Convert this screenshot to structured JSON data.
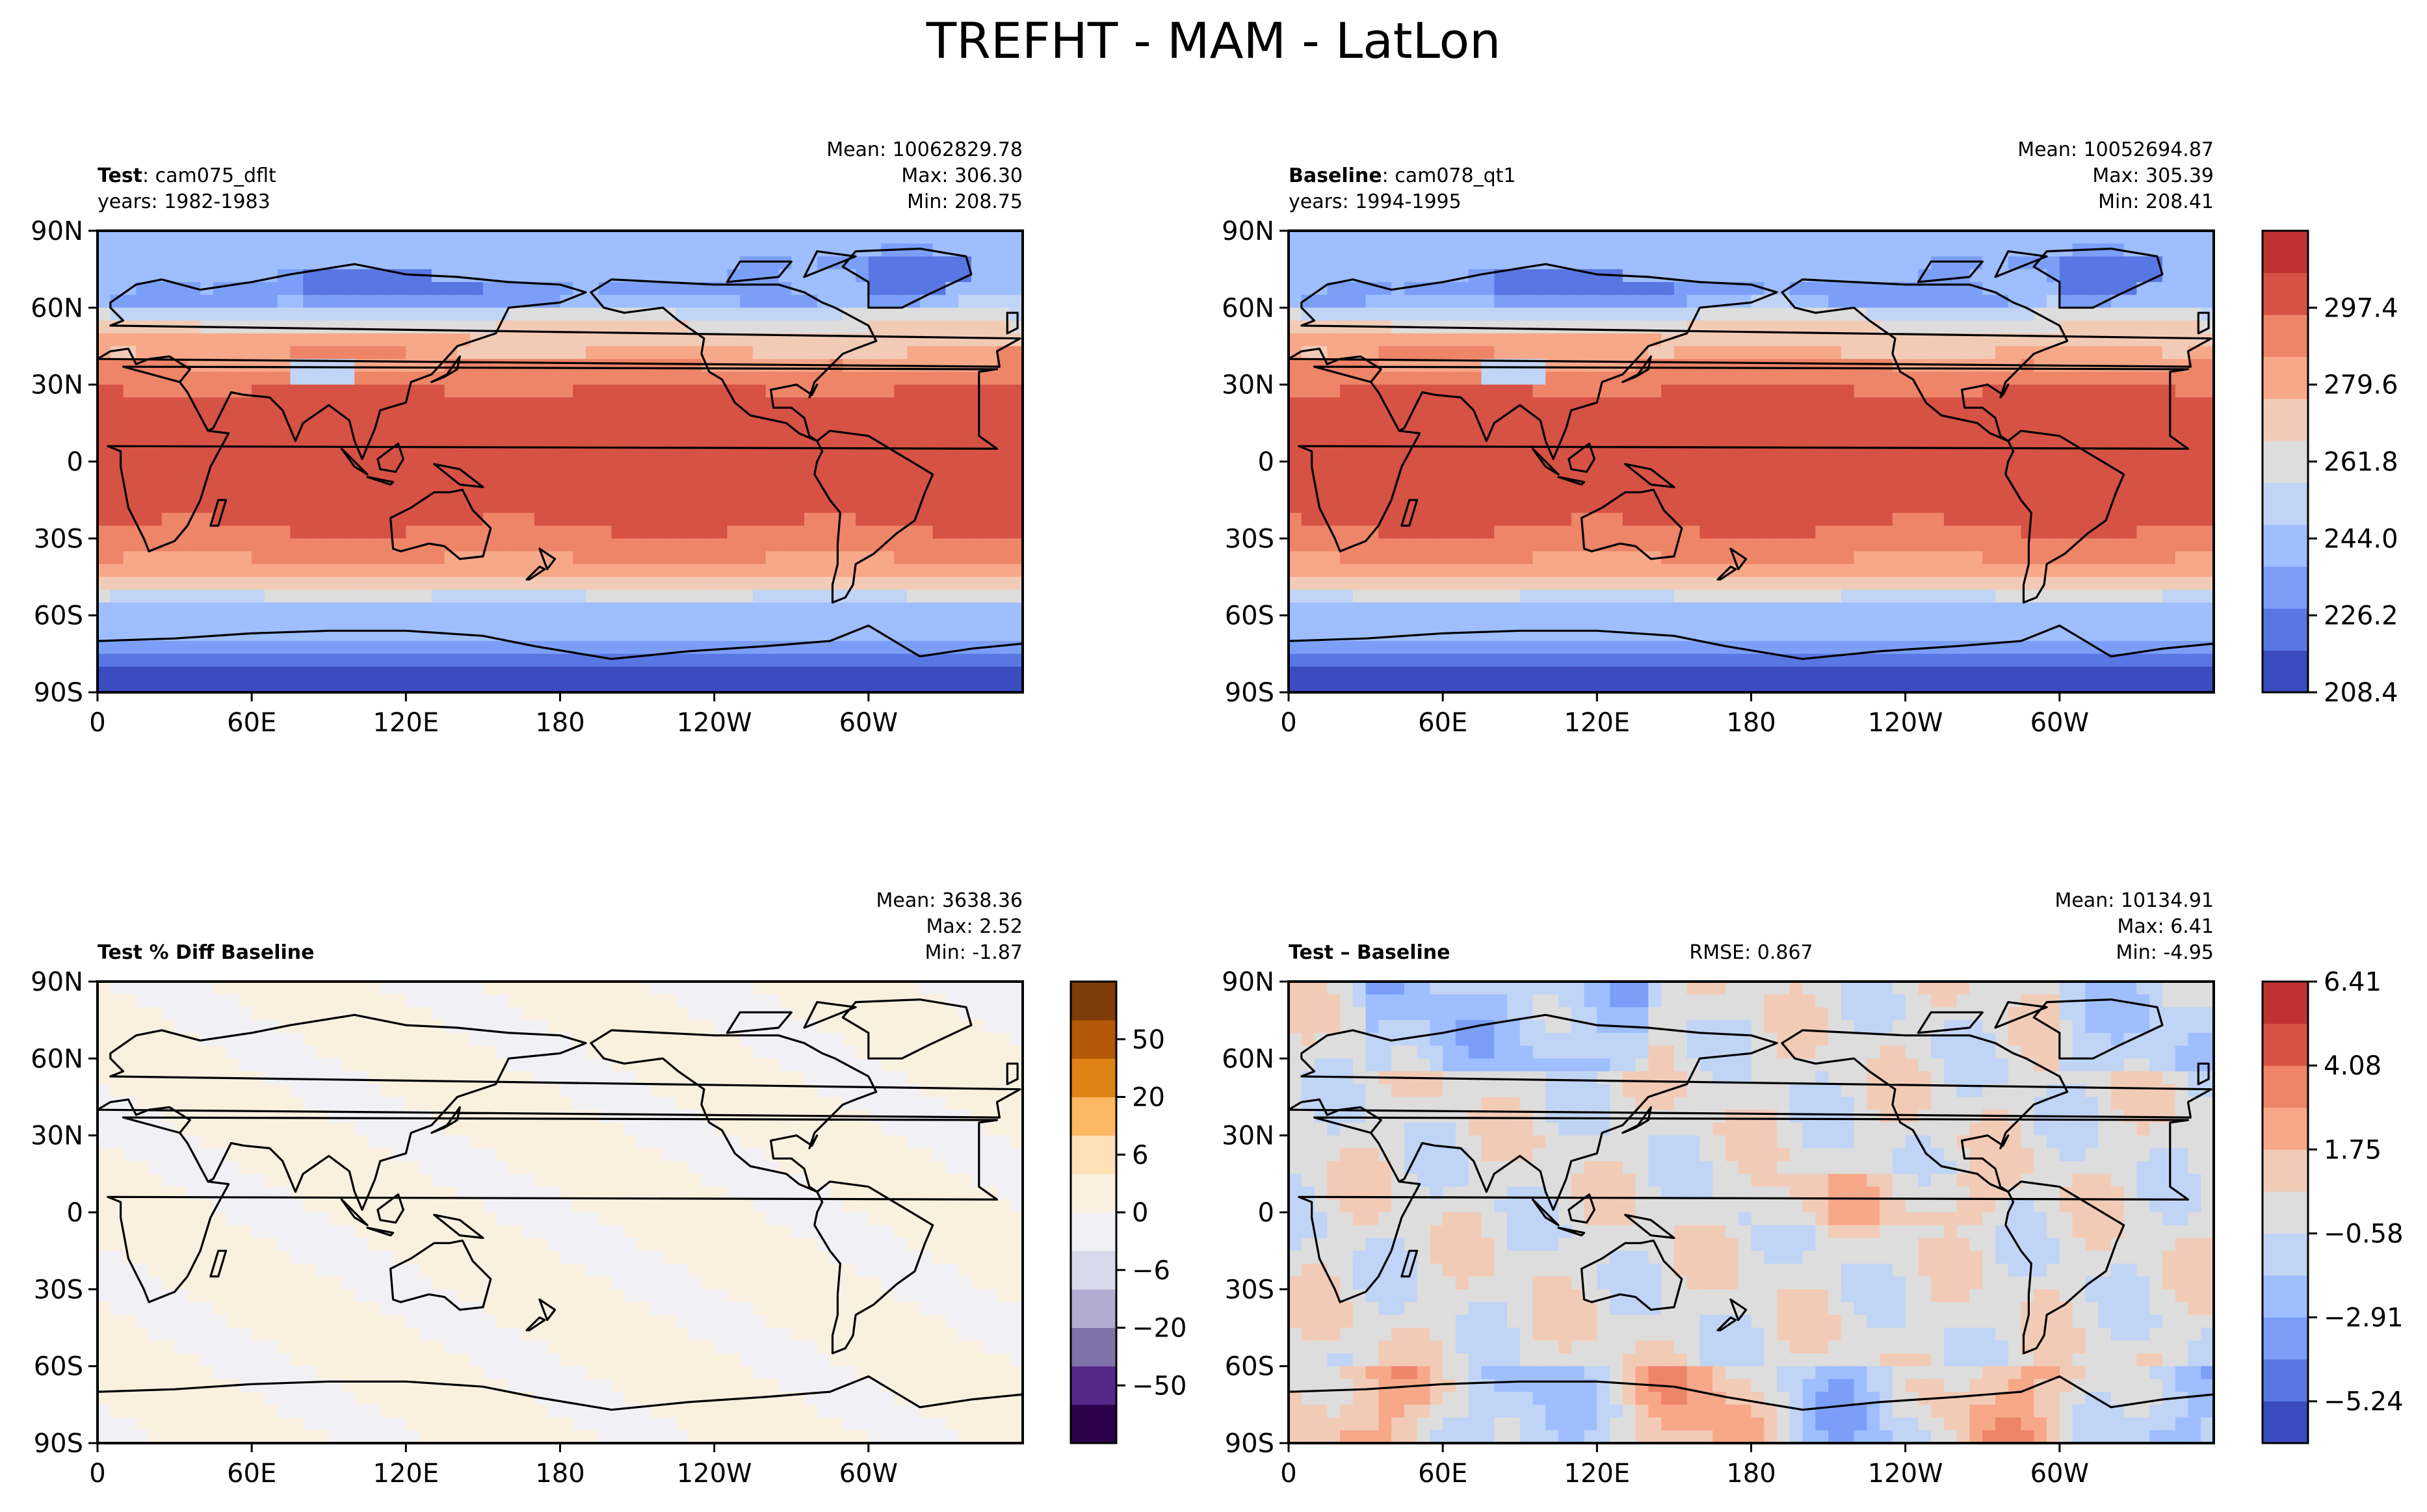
{
  "figure_title": "TREFHT - MAM - LatLon",
  "colors": {
    "cool_warm": [
      "#3b4cc0",
      "#5977e3",
      "#7b9ff9",
      "#9ebeff",
      "#c0d4f5",
      "#dddddd",
      "#f2cbb7",
      "#f7a889",
      "#ee8468",
      "#d65244",
      "#c03232"
    ],
    "pct_diff": [
      "#2d004b",
      "#542788",
      "#8073ac",
      "#b2abd2",
      "#d8daeb",
      "#f1f1f5",
      "#faf0e0",
      "#fee0b6",
      "#fdb863",
      "#e08214",
      "#b35806",
      "#7f3b08"
    ],
    "coast": "#000000"
  },
  "chart_data": [
    {
      "type": "heatmap",
      "panel": "top-left",
      "label_bold": "Test",
      "label_rest": ": cam075_dflt",
      "years": "years: 1982-1983",
      "stats": [
        "Mean: 10062829.78",
        "Max: 306.30",
        "Min: 208.75"
      ],
      "xticks": [
        "0",
        "60E",
        "120E",
        "180",
        "120W",
        "60W"
      ],
      "yticks": [
        "90N",
        "60N",
        "30N",
        "0",
        "30S",
        "60S",
        "90S"
      ],
      "xlim": [
        0,
        360
      ],
      "ylim": [
        -90,
        90
      ],
      "field": "absolute",
      "scale": "cool_warm",
      "seed": 3
    },
    {
      "type": "heatmap",
      "panel": "top-right",
      "label_bold": "Baseline",
      "label_rest": ": cam078_qt1",
      "years": "years: 1994-1995",
      "stats": [
        "Mean: 10052694.87",
        "Max: 305.39",
        "Min: 208.41"
      ],
      "xticks": [
        "0",
        "60E",
        "120E",
        "180",
        "120W",
        "60W"
      ],
      "yticks": [
        "90N",
        "60N",
        "30N",
        "0",
        "30S",
        "60S",
        "90S"
      ],
      "xlim": [
        0,
        360
      ],
      "ylim": [
        -90,
        90
      ],
      "field": "absolute",
      "scale": "cool_warm",
      "seed": 5,
      "colorbar": {
        "ticks": [
          "297.4",
          "279.6",
          "261.8",
          "244.0",
          "226.2",
          "208.4"
        ],
        "range": [
          208.4,
          315.2
        ],
        "values": [
          297.4,
          279.6,
          261.8,
          244.0,
          226.2,
          208.4
        ]
      }
    },
    {
      "type": "heatmap",
      "panel": "bottom-left",
      "label_bold": "Test % Diff Baseline",
      "label_rest": "",
      "stats": [
        "Mean: 3638.36",
        "Max:  2.52",
        "Min: -1.87"
      ],
      "xticks": [
        "0",
        "60E",
        "120E",
        "180",
        "120W",
        "60W"
      ],
      "yticks": [
        "90N",
        "60N",
        "30N",
        "0",
        "30S",
        "60S",
        "90S"
      ],
      "xlim": [
        0,
        360
      ],
      "ylim": [
        -90,
        90
      ],
      "field": "pct",
      "scale": "pct_diff",
      "seed": 7,
      "colorbar": {
        "ticks": [
          "50",
          "20",
          "6",
          "0",
          "−6",
          "−20",
          "−50"
        ],
        "levels": 12,
        "tick_levels": [
          10.5,
          9,
          7.5,
          6,
          4.5,
          3,
          1.5
        ]
      }
    },
    {
      "type": "heatmap",
      "panel": "bottom-right",
      "label_bold": "Test – Baseline",
      "label_rest": "",
      "rmse": "RMSE: 0.867",
      "stats": [
        "Mean: 10134.91",
        "Max:  6.41",
        "Min: -4.95"
      ],
      "xticks": [
        "0",
        "60E",
        "120E",
        "180",
        "120W",
        "60W"
      ],
      "yticks": [
        "90N",
        "60N",
        "30N",
        "0",
        "30S",
        "60S",
        "90S"
      ],
      "xlim": [
        0,
        360
      ],
      "ylim": [
        -90,
        90
      ],
      "field": "diff",
      "scale": "cool_warm",
      "seed": 11,
      "colorbar": {
        "ticks": [
          "6.41",
          "4.08",
          "1.75",
          "−0.58",
          "−2.91",
          "−5.24"
        ],
        "range": [
          -6.4,
          6.41
        ],
        "values": [
          6.41,
          4.08,
          1.75,
          -0.58,
          -2.91,
          -5.24
        ]
      }
    }
  ]
}
